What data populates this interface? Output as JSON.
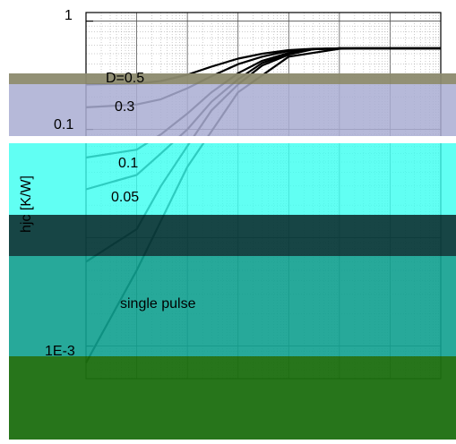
{
  "colors": {
    "background": "#ffffff",
    "curve": "#000000",
    "band_olive": "#8c8a6e",
    "band_lavender": "#a9add2",
    "band_cyan": "#39fff0",
    "band_teal": "#0fa08f",
    "band_dark": "#0b3b3b",
    "band_green": "#1b6e0f",
    "white_strip": "#ffffff"
  },
  "chart_data": {
    "type": "line",
    "x_scale": "log",
    "y_scale": "log",
    "xlim": [
      1e-06,
      10.0
    ],
    "ylim": [
      0.0005,
      1.2
    ],
    "grid": true,
    "xlabel": "",
    "ylabel": "Z_thjc [K/W]",
    "y_ticks": [
      {
        "value": 1,
        "label": "1"
      },
      {
        "value": 0.1,
        "label": "0.1"
      },
      {
        "value": 0.001,
        "label": "1E-3"
      }
    ],
    "series": [
      {
        "name": "D=0.5",
        "x": [
          1e-06,
          1e-05,
          3e-05,
          0.0001,
          0.0003,
          0.001,
          0.003,
          0.01,
          0.03,
          0.1,
          0.2,
          10.0
        ],
        "y": [
          0.26,
          0.265,
          0.28,
          0.32,
          0.38,
          0.45,
          0.5,
          0.54,
          0.555,
          0.56,
          0.56,
          0.56
        ]
      },
      {
        "name": "0.3",
        "x": [
          1e-06,
          1e-05,
          3e-05,
          0.0001,
          0.0003,
          0.001,
          0.003,
          0.01,
          0.03,
          0.1,
          0.2,
          10.0
        ],
        "y": [
          0.16,
          0.17,
          0.19,
          0.24,
          0.31,
          0.4,
          0.47,
          0.53,
          0.55,
          0.56,
          0.56,
          0.56
        ]
      },
      {
        "name": "0.1",
        "x": [
          1e-06,
          1e-05,
          3e-05,
          0.0001,
          0.0003,
          0.001,
          0.003,
          0.01,
          0.03,
          0.1,
          0.2,
          10.0
        ],
        "y": [
          0.055,
          0.065,
          0.09,
          0.14,
          0.22,
          0.33,
          0.43,
          0.51,
          0.55,
          0.56,
          0.56,
          0.56
        ]
      },
      {
        "name": "0.05",
        "x": [
          1e-06,
          1e-05,
          3e-05,
          0.0001,
          0.0003,
          0.001,
          0.003,
          0.01,
          0.03,
          0.1,
          0.2,
          10.0
        ],
        "y": [
          0.028,
          0.038,
          0.06,
          0.1,
          0.18,
          0.29,
          0.41,
          0.5,
          0.55,
          0.56,
          0.56,
          0.56
        ]
      },
      {
        "name": "",
        "x": [
          1e-06,
          1e-05,
          3e-05,
          0.0001,
          0.0003,
          0.001,
          0.003,
          0.01,
          0.03,
          0.1,
          0.2,
          10.0
        ],
        "y": [
          0.006,
          0.012,
          0.03,
          0.07,
          0.15,
          0.26,
          0.39,
          0.49,
          0.55,
          0.56,
          0.56,
          0.56
        ]
      },
      {
        "name": "single pulse",
        "x": [
          1e-06,
          1e-05,
          0.0001,
          0.001,
          0.01,
          0.1,
          0.2,
          10.0
        ],
        "y": [
          0.0007,
          0.005,
          0.045,
          0.22,
          0.47,
          0.555,
          0.56,
          0.56
        ]
      }
    ],
    "annotations": [
      {
        "text": "D=0.5",
        "series": 0
      },
      {
        "text": "0.3",
        "series": 1
      },
      {
        "text": "0.1",
        "series": 2
      },
      {
        "text": "0.05",
        "series": 3
      },
      {
        "text": "single pulse",
        "series": 5
      }
    ],
    "ylabel_visible": "hjc [K/W]"
  }
}
